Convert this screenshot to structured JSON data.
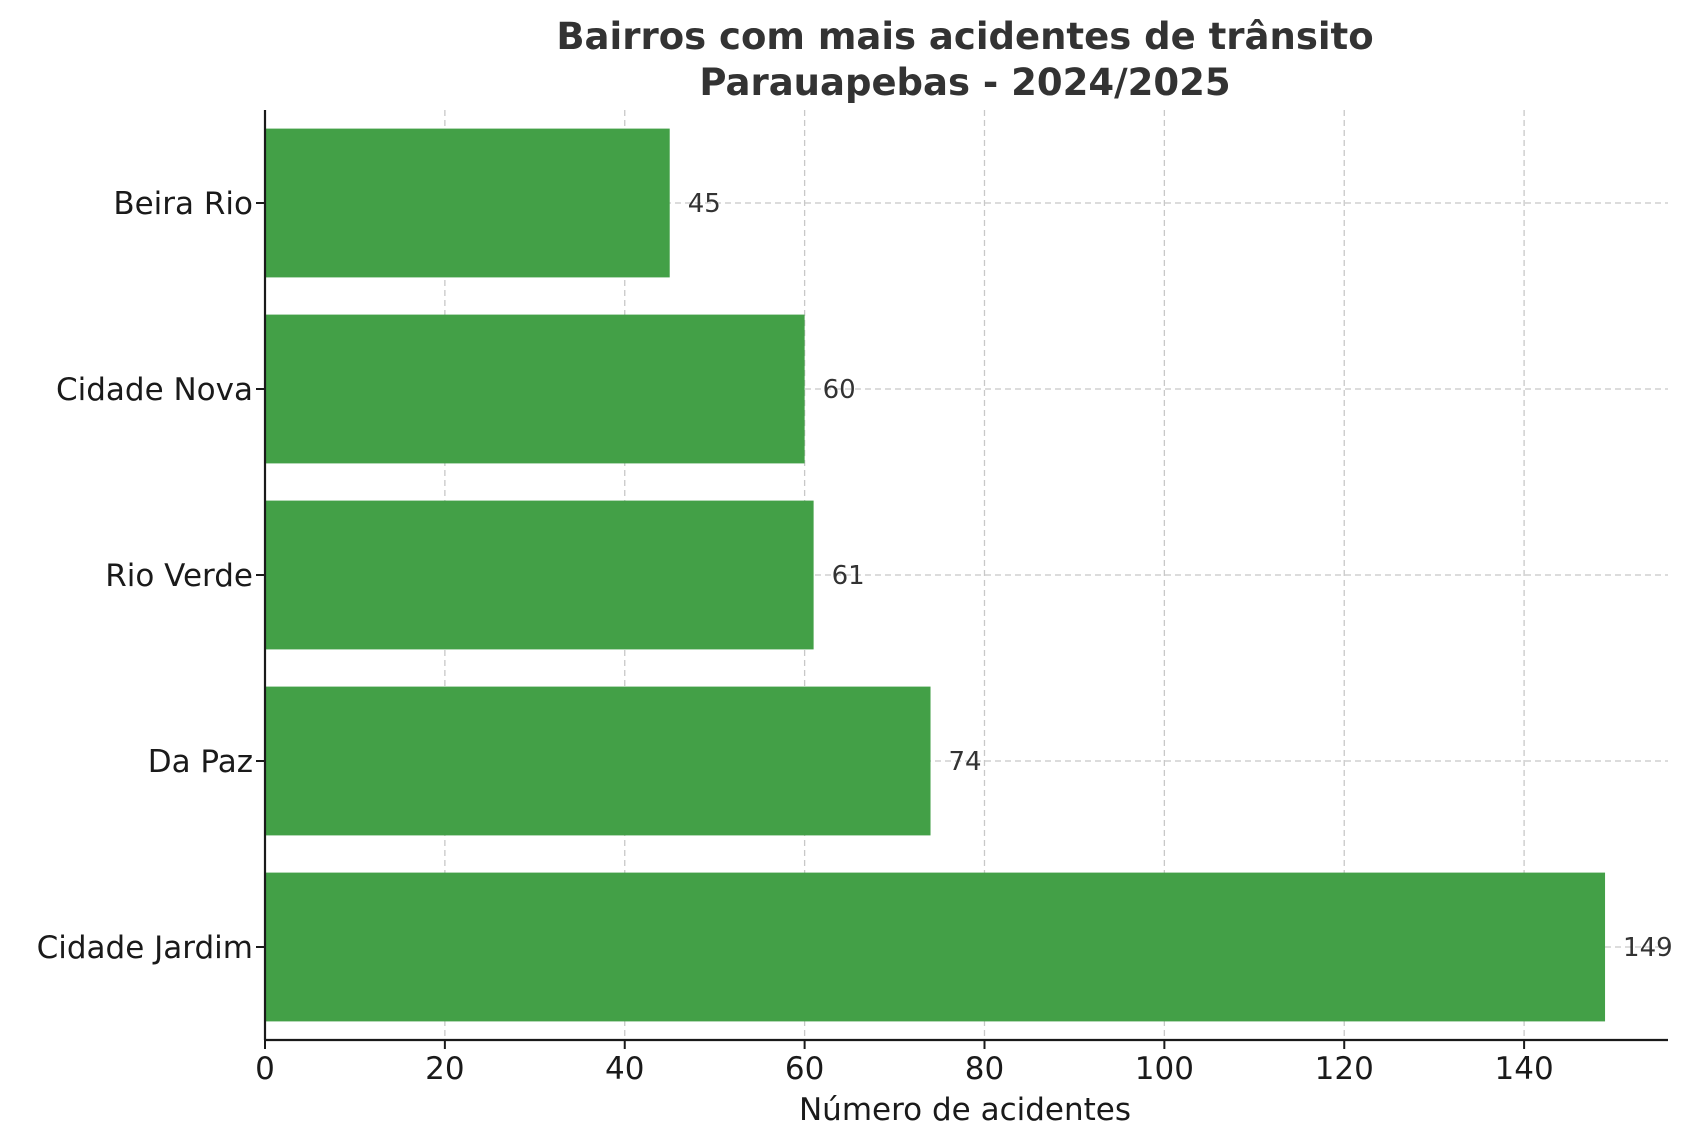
{
  "chart_data": {
    "type": "bar",
    "orientation": "horizontal",
    "title": [
      "Bairros com mais acidentes de trânsito",
      "Parauapebas - 2024/2025"
    ],
    "xlabel": "Número de acidentes",
    "ylabel": "",
    "categories": [
      "Beira Rio",
      "Cidade Nova",
      "Rio Verde",
      "Da Paz",
      "Cidade Jardim"
    ],
    "values": [
      45,
      60,
      61,
      74,
      149
    ],
    "value_labels": [
      "45",
      "60",
      "61",
      "74",
      "149"
    ],
    "xlim": [
      0,
      156
    ],
    "xticks": [
      0,
      20,
      40,
      60,
      80,
      100,
      120,
      140
    ],
    "xtick_labels": [
      "0",
      "20",
      "40",
      "60",
      "80",
      "100",
      "120",
      "140"
    ],
    "grid": true,
    "bar_color": "#43a047"
  }
}
